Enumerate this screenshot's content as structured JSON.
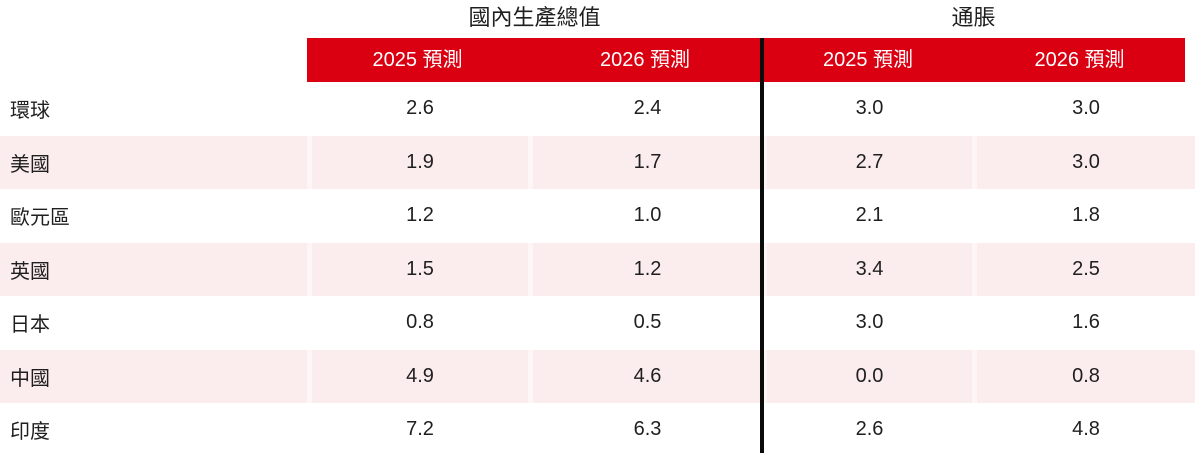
{
  "colors": {
    "header_red": "#db0011",
    "stripe_pink": "#fbecee",
    "gap_light": "#fdf5f6",
    "divider_black": "#0a0a0a",
    "text_dark": "#1f1f1f"
  },
  "table": {
    "sections": [
      {
        "title": "國內生產總值"
      },
      {
        "title": "通脹"
      }
    ],
    "col_headers": [
      "2025 預測",
      "2026 預測",
      "2025 預測",
      "2026 預測"
    ],
    "rows": [
      {
        "label": "環球",
        "values": [
          "2.6",
          "2.4",
          "3.0",
          "3.0"
        ]
      },
      {
        "label": "美國",
        "values": [
          "1.9",
          "1.7",
          "2.7",
          "3.0"
        ]
      },
      {
        "label": "歐元區",
        "values": [
          "1.2",
          "1.0",
          "2.1",
          "1.8"
        ]
      },
      {
        "label": "英國",
        "values": [
          "1.5",
          "1.2",
          "3.4",
          "2.5"
        ]
      },
      {
        "label": "日本",
        "values": [
          "0.8",
          "0.5",
          "3.0",
          "1.6"
        ]
      },
      {
        "label": "中國",
        "values": [
          "4.9",
          "4.6",
          "0.0",
          "0.8"
        ]
      },
      {
        "label": "印度",
        "values": [
          "7.2",
          "6.3",
          "2.6",
          "4.8"
        ]
      }
    ]
  },
  "chart_data": {
    "type": "table",
    "title": "",
    "column_groups": [
      "國內生產總值",
      "通脹"
    ],
    "columns": [
      "國內生產總值 2025 預測",
      "國內生產總值 2026 預測",
      "通脹 2025 預測",
      "通脹 2026 預測"
    ],
    "row_labels": [
      "環球",
      "美國",
      "歐元區",
      "英國",
      "日本",
      "中國",
      "印度"
    ],
    "values": [
      [
        2.6,
        2.4,
        3.0,
        3.0
      ],
      [
        1.9,
        1.7,
        2.7,
        3.0
      ],
      [
        1.2,
        1.0,
        2.1,
        1.8
      ],
      [
        1.5,
        1.2,
        3.4,
        2.5
      ],
      [
        0.8,
        0.5,
        3.0,
        1.6
      ],
      [
        4.9,
        4.6,
        0.0,
        0.8
      ],
      [
        7.2,
        6.3,
        2.6,
        4.8
      ]
    ],
    "layout": {
      "header_style": "red band with white text",
      "row_striping": "alternating white / light pink starting white",
      "section_divider": "thick black vertical line between GDP and inflation columns"
    }
  }
}
